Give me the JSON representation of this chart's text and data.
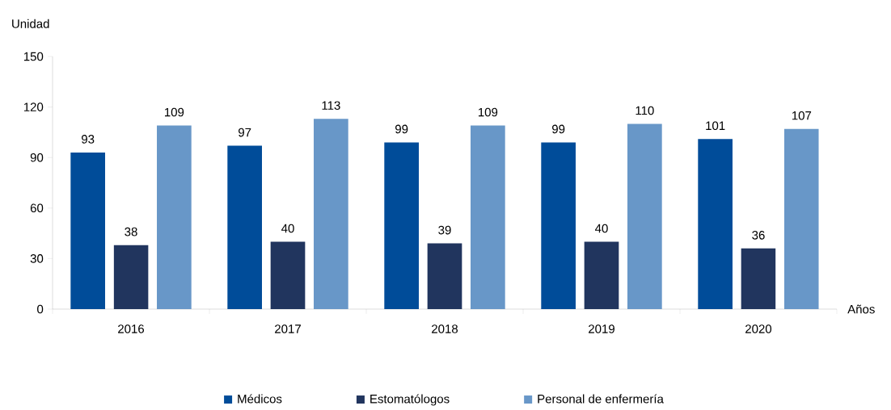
{
  "chart_data": {
    "type": "bar",
    "ylabel": "Unidad",
    "xlabel": "Años",
    "categories": [
      "2016",
      "2017",
      "2018",
      "2019",
      "2020"
    ],
    "series": [
      {
        "name": "Médicos",
        "color": "#004c99",
        "values": [
          93,
          97,
          99,
          99,
          101
        ]
      },
      {
        "name": "Estomatólogos",
        "color": "#21355e",
        "values": [
          38,
          40,
          39,
          40,
          36
        ]
      },
      {
        "name": "Personal de enfermería",
        "color": "#6897c8",
        "values": [
          109,
          113,
          109,
          110,
          107
        ]
      }
    ],
    "ylim": [
      0,
      150
    ],
    "yticks": [
      0,
      30,
      60,
      90,
      120,
      150
    ],
    "data_labels": true,
    "grid": false,
    "legend": "bottom"
  }
}
